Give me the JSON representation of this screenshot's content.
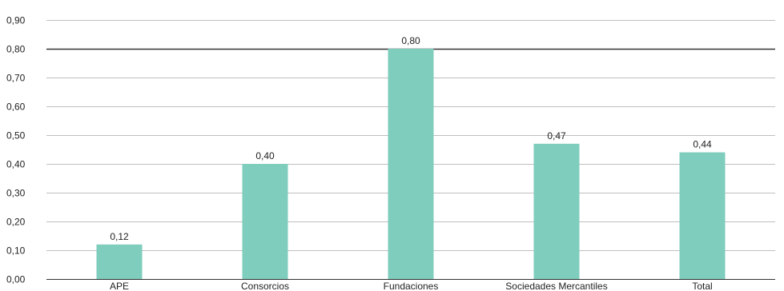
{
  "chart_data": {
    "type": "bar",
    "title": "",
    "xlabel": "",
    "ylabel": "",
    "categories": [
      "APE",
      "Consorcios",
      "Fundaciones",
      "Sociedades Mercantiles",
      "Total"
    ],
    "values": [
      0.12,
      0.4,
      0.8,
      0.47,
      0.44
    ],
    "data_labels": [
      "0,12",
      "0,40",
      "0,80",
      "0,47",
      "0,44"
    ],
    "ylim": [
      0,
      0.9
    ],
    "y_ticks": [
      0,
      0.1,
      0.2,
      0.3,
      0.4,
      0.5,
      0.6,
      0.7,
      0.8,
      0.9
    ],
    "y_tick_labels": [
      "0,00",
      "0,10",
      "0,20",
      "0,30",
      "0,40",
      "0,50",
      "0,60",
      "0,70",
      "0,80",
      "0,90"
    ],
    "grid": true,
    "emphasized_gridline": 0.8,
    "legend": "none",
    "colors": {
      "bar": "#7ecdbd",
      "grid": "#bfbfbf",
      "emphasized_grid": "#333333",
      "axis": "#333333"
    }
  }
}
